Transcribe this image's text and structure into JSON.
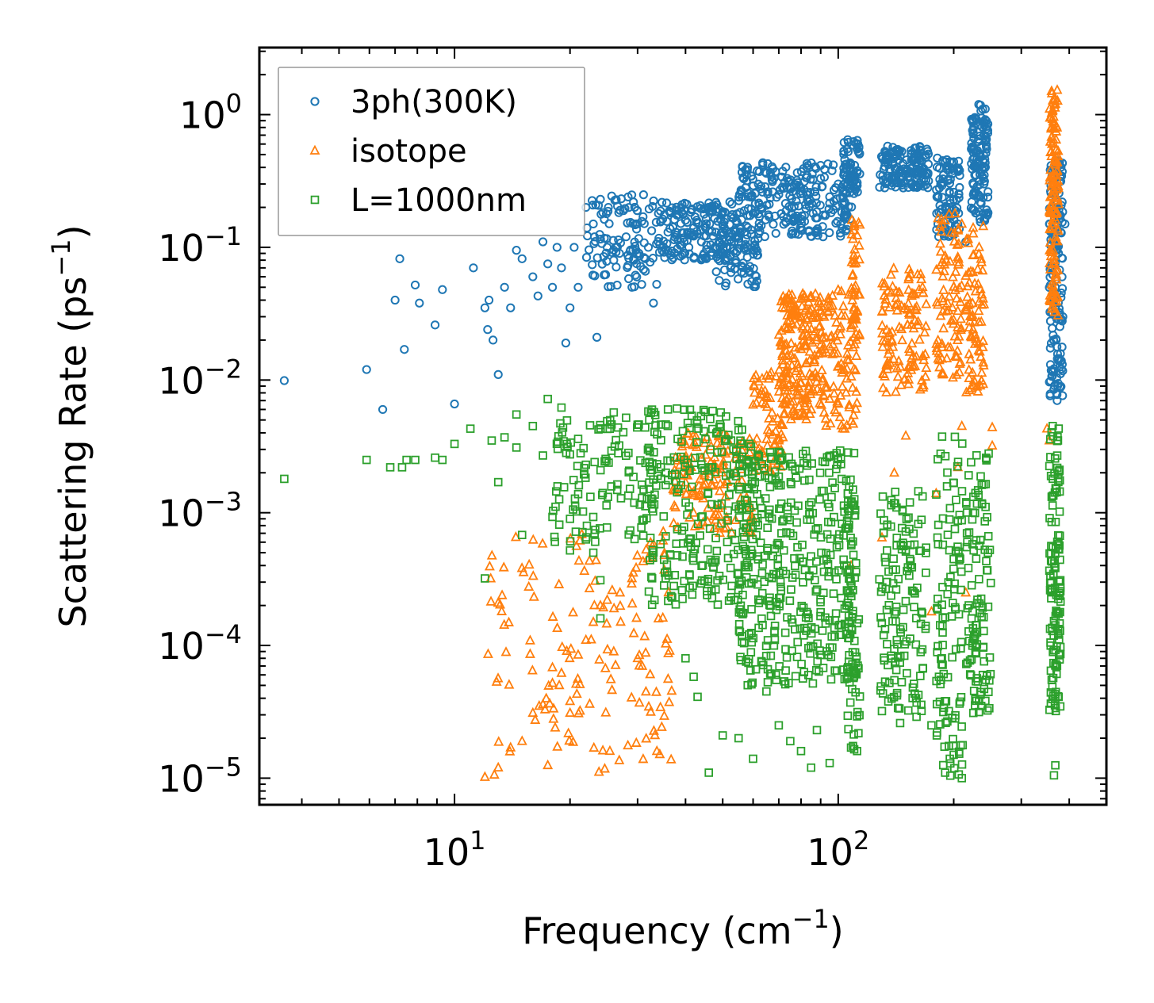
{
  "chart_data": {
    "type": "scatter",
    "x_scale": "log",
    "y_scale": "log",
    "xlabel": "Frequency (cm",
    "ylabel": "Scattering Rate (ps",
    "label_exponent": "−1",
    "label_close": ")",
    "xlim": [
      3.1,
      500
    ],
    "ylim": [
      6.3e-06,
      3.2
    ],
    "x_ticks": [
      {
        "base": "10",
        "exp": "1",
        "value": 10
      },
      {
        "base": "10",
        "exp": "2",
        "value": 100
      }
    ],
    "y_ticks": [
      {
        "base": "10",
        "exp": "0",
        "value": 1
      },
      {
        "base": "10",
        "exp": "−1",
        "value": 0.1
      },
      {
        "base": "10",
        "exp": "−2",
        "value": 0.01
      },
      {
        "base": "10",
        "exp": "−3",
        "value": 0.001
      },
      {
        "base": "10",
        "exp": "−4",
        "value": 0.0001
      },
      {
        "base": "10",
        "exp": "−5",
        "value": 1e-05
      }
    ],
    "legend_position": "top-left",
    "series": [
      {
        "name": "3ph(300K)",
        "color": "#1f77b4",
        "marker": "circle",
        "points": [
          [
            3.6,
            0.0099
          ],
          [
            5.9,
            0.012
          ],
          [
            6.5,
            0.006
          ],
          [
            7.2,
            0.082
          ],
          [
            7.0,
            0.04
          ],
          [
            7.4,
            0.017
          ],
          [
            7.9,
            0.052
          ],
          [
            8.1,
            0.038
          ],
          [
            8.9,
            0.026
          ],
          [
            9.3,
            0.048
          ],
          [
            10.0,
            0.0066
          ],
          [
            11.2,
            0.07
          ],
          [
            12.0,
            0.035
          ],
          [
            12.2,
            0.024
          ],
          [
            12.6,
            0.02
          ],
          [
            13.0,
            0.011
          ],
          [
            12.3,
            0.04
          ],
          [
            13.5,
            0.05
          ],
          [
            14.0,
            0.035
          ],
          [
            14.5,
            0.095
          ],
          [
            15.0,
            0.082
          ],
          [
            16.0,
            0.06
          ],
          [
            16.5,
            0.043
          ],
          [
            17.0,
            0.11
          ],
          [
            17.5,
            0.075
          ],
          [
            18.0,
            0.05
          ],
          [
            18.5,
            0.1
          ],
          [
            19.0,
            0.07
          ],
          [
            19.5,
            0.019
          ],
          [
            20.0,
            0.035
          ],
          [
            20.5,
            0.1
          ],
          [
            21.0,
            0.05
          ],
          [
            22.0,
            0.2
          ],
          [
            23.0,
            0.15
          ],
          [
            23.5,
            0.021
          ],
          [
            24.0,
            0.23
          ],
          [
            25.0,
            0.1
          ],
          [
            26.0,
            0.08
          ],
          [
            27.0,
            0.19
          ],
          [
            28.0,
            0.12
          ],
          [
            29.0,
            0.05
          ],
          [
            30.0,
            0.15
          ],
          [
            31.0,
            0.17
          ],
          [
            32.0,
            0.1
          ],
          [
            33.0,
            0.038
          ],
          [
            34.0,
            0.18
          ],
          [
            36.0,
            0.13
          ],
          [
            38.0,
            0.19
          ],
          [
            40.0,
            0.16
          ],
          [
            42.0,
            0.14
          ],
          [
            44.0,
            0.11
          ],
          [
            46.0,
            0.2
          ],
          [
            48.0,
            0.13
          ],
          [
            50.0,
            0.15
          ],
          [
            52.0,
            0.12
          ],
          [
            54.0,
            0.08
          ],
          [
            56.0,
            0.065
          ],
          [
            58.0,
            0.1
          ],
          [
            60.0,
            0.18
          ],
          [
            63.0,
            0.2
          ],
          [
            66.0,
            0.17
          ],
          [
            70.0,
            0.25
          ],
          [
            72.0,
            0.17
          ],
          [
            75.0,
            0.28
          ],
          [
            78.0,
            0.32
          ],
          [
            80.0,
            0.14
          ],
          [
            83.0,
            0.26
          ],
          [
            86.0,
            0.18
          ],
          [
            90.0,
            0.33
          ],
          [
            95.0,
            0.24
          ],
          [
            100.0,
            0.3
          ],
          [
            104.0,
            0.22
          ],
          [
            108.0,
            0.38
          ],
          [
            112.0,
            0.55
          ],
          [
            135.0,
            0.42
          ],
          [
            145.0,
            0.38
          ],
          [
            155.0,
            0.5
          ],
          [
            165.0,
            0.45
          ],
          [
            185.0,
            0.3
          ],
          [
            195.0,
            0.2
          ],
          [
            205.0,
            0.15
          ],
          [
            215.0,
            0.11
          ],
          [
            225.0,
            0.25
          ],
          [
            232.0,
            0.45
          ],
          [
            238.0,
            1.1
          ],
          [
            240.0,
            0.7
          ],
          [
            360.0,
            0.33
          ],
          [
            365.0,
            0.1
          ],
          [
            368.0,
            0.05
          ],
          [
            370.0,
            0.02
          ],
          [
            372.0,
            0.007
          ],
          [
            375.0,
            0.014
          ],
          [
            380.0,
            0.13
          ],
          [
            385.0,
            0.03
          ],
          [
            390.0,
            0.15
          ]
        ],
        "bands": [
          {
            "x": [
              22,
              34
            ],
            "y": [
              0.05,
              0.25
            ],
            "n": 110
          },
          {
            "x": [
              34,
              55
            ],
            "y": [
              0.08,
              0.22
            ],
            "n": 180
          },
          {
            "x": [
              48,
              62
            ],
            "y": [
              0.05,
              0.12
            ],
            "n": 60
          },
          {
            "x": [
              55,
              110
            ],
            "y": [
              0.12,
              0.45
            ],
            "n": 260
          },
          {
            "x": [
              103,
              114
            ],
            "y": [
              0.25,
              0.65
            ],
            "n": 60
          },
          {
            "x": [
              128,
              172
            ],
            "y": [
              0.28,
              0.58
            ],
            "n": 150
          },
          {
            "x": [
              180,
              208
            ],
            "y": [
              0.12,
              0.48
            ],
            "n": 90
          },
          {
            "x": [
              222,
              246
            ],
            "y": [
              0.15,
              1.2
            ],
            "n": 120
          },
          {
            "x": [
              355,
              385
            ],
            "y": [
              0.0075,
              0.45
            ],
            "n": 160
          }
        ]
      },
      {
        "name": "isotope",
        "color": "#ff7f0e",
        "marker": "triangle",
        "points": [
          [
            12.0,
            1.02e-05
          ],
          [
            12.7,
            1.06e-05
          ],
          [
            13.0,
            1.2e-05
          ],
          [
            14.0,
            1.7e-05
          ],
          [
            15.0,
            1.9e-05
          ],
          [
            16.0,
            3.1e-05
          ],
          [
            17.0,
            3.6e-05
          ],
          [
            18.0,
            5.2e-05
          ],
          [
            19.0,
            6.2e-05
          ],
          [
            20.0,
            3.1e-05
          ],
          [
            21.0,
            8.5e-05
          ],
          [
            22.0,
            0.00011
          ],
          [
            23.0,
            0.00015
          ],
          [
            24.0,
            0.0002
          ],
          [
            25.0,
            0.00022
          ],
          [
            27.0,
            0.00025
          ],
          [
            29.0,
            0.00032
          ],
          [
            31.0,
            0.00043
          ],
          [
            33.0,
            0.00058
          ],
          [
            35.0,
            0.00072
          ],
          [
            17.5,
            1.25e-05
          ],
          [
            20.0,
            3.8e-05
          ],
          [
            26.0,
            9e-05
          ],
          [
            30.0,
            8e-05
          ],
          [
            64.0,
            0.0021
          ],
          [
            70.0,
            0.0035
          ],
          [
            108.0,
            0.0004
          ],
          [
            130.0,
            0.00065
          ],
          [
            140.0,
            0.002
          ],
          [
            150.0,
            0.0038
          ],
          [
            175.0,
            0.00018
          ],
          [
            180.0,
            0.0014
          ],
          [
            205.0,
            0.0022
          ],
          [
            210.0,
            0.0045
          ],
          [
            215.0,
            0.00025
          ],
          [
            252.0,
            0.0044
          ],
          [
            252.0,
            0.0032
          ],
          [
            350.0,
            0.0043
          ],
          [
            355.0,
            0.0035
          ]
        ],
        "bands": [
          {
            "x": [
              12,
              37
            ],
            "y": [
              1.1e-05,
              0.0007
            ],
            "n": 140
          },
          {
            "x": [
              37,
              60
            ],
            "y": [
              0.0007,
              0.004
            ],
            "n": 140
          },
          {
            "x": [
              60,
              72
            ],
            "y": [
              0.002,
              0.012
            ],
            "n": 70
          },
          {
            "x": [
              70,
              92
            ],
            "y": [
              0.005,
              0.045
            ],
            "n": 220
          },
          {
            "x": [
              92,
              112
            ],
            "y": [
              0.004,
              0.05
            ],
            "n": 90
          },
          {
            "x": [
              108,
              114
            ],
            "y": [
              0.02,
              0.17
            ],
            "n": 40
          },
          {
            "x": [
              130,
              170
            ],
            "y": [
              0.008,
              0.07
            ],
            "n": 120
          },
          {
            "x": [
              180,
              210
            ],
            "y": [
              0.01,
              0.18
            ],
            "n": 90
          },
          {
            "x": [
              215,
              240
            ],
            "y": [
              0.008,
              0.15
            ],
            "n": 80
          },
          {
            "x": [
              355,
              375
            ],
            "y": [
              0.03,
              1.6
            ],
            "n": 140
          }
        ]
      },
      {
        "name": "L=1000nm",
        "color": "#2ca02c",
        "marker": "square",
        "points": [
          [
            3.6,
            0.0018
          ],
          [
            5.9,
            0.0025
          ],
          [
            6.8,
            0.0022
          ],
          [
            7.3,
            0.0022
          ],
          [
            7.5,
            0.0025
          ],
          [
            7.9,
            0.0025
          ],
          [
            8.9,
            0.0026
          ],
          [
            9.3,
            0.0025
          ],
          [
            10.0,
            0.0033
          ],
          [
            11.0,
            0.0043
          ],
          [
            12.0,
            0.00032
          ],
          [
            12.5,
            0.0035
          ],
          [
            13.0,
            0.0017
          ],
          [
            13.5,
            0.0037
          ],
          [
            14.5,
            0.0055
          ],
          [
            14.5,
            0.0031
          ],
          [
            15.0,
            0.00068
          ],
          [
            16.0,
            0.0045
          ],
          [
            17.0,
            0.0027
          ],
          [
            17.5,
            0.0072
          ],
          [
            18.0,
            0.00093
          ],
          [
            19.0,
            0.0062
          ],
          [
            20.0,
            0.0009
          ],
          [
            20.0,
            0.00052
          ],
          [
            21.0,
            0.0036
          ],
          [
            22.0,
            0.0023
          ],
          [
            23.0,
            0.0005
          ],
          [
            24.0,
            0.00031
          ],
          [
            24.0,
            0.00016
          ],
          [
            25.0,
            0.0049
          ],
          [
            26.0,
            0.0057
          ],
          [
            28.0,
            0.0052
          ],
          [
            30.0,
            0.0046
          ],
          [
            32.0,
            0.0058
          ],
          [
            36.0,
            0.006
          ],
          [
            38.0,
            0.0061
          ],
          [
            40.0,
            8e-05
          ],
          [
            42.0,
            5.8e-05
          ],
          [
            43.0,
            4.1e-05
          ],
          [
            46.0,
            1.1e-05
          ],
          [
            50.0,
            2.1e-05
          ],
          [
            55.0,
            2e-05
          ],
          [
            60.0,
            1.4e-05
          ],
          [
            65.0,
            4.5e-05
          ],
          [
            70.0,
            2.5e-05
          ],
          [
            75.0,
            1.9e-05
          ],
          [
            80.0,
            1.6e-05
          ],
          [
            85.0,
            1.2e-05
          ],
          [
            88.0,
            2.3e-05
          ],
          [
            95.0,
            1.3e-05
          ],
          [
            108.0,
            1.7e-05
          ],
          [
            112.0,
            1.6e-05
          ],
          [
            130.0,
            3.2e-05
          ],
          [
            145.0,
            2.6e-05
          ],
          [
            160.0,
            2.9e-05
          ],
          [
            175.0,
            2.5e-05
          ],
          [
            190.0,
            1.1e-05
          ],
          [
            200.0,
            1.5e-05
          ],
          [
            210.0,
            1e-05
          ],
          [
            225.0,
            3.1e-05
          ],
          [
            240.0,
            4.7e-05
          ],
          [
            365.0,
            1.05e-05
          ],
          [
            368.0,
            1.25e-05
          ]
        ],
        "bands": [
          {
            "x": [
              18,
              34
            ],
            "y": [
              0.0006,
              0.005
            ],
            "n": 120
          },
          {
            "x": [
              32,
              60
            ],
            "y": [
              0.0002,
              0.006
            ],
            "n": 240
          },
          {
            "x": [
              55,
              112
            ],
            "y": [
              5e-05,
              0.003
            ],
            "n": 420
          },
          {
            "x": [
              105,
              114
            ],
            "y": [
              1.6e-05,
              0.0013
            ],
            "n": 50
          },
          {
            "x": [
              128,
              170
            ],
            "y": [
              3e-05,
              0.0015
            ],
            "n": 140
          },
          {
            "x": [
              180,
              212
            ],
            "y": [
              1e-05,
              0.004
            ],
            "n": 110
          },
          {
            "x": [
              215,
              250
            ],
            "y": [
              3e-05,
              0.003
            ],
            "n": 110
          },
          {
            "x": [
              355,
              380
            ],
            "y": [
              3e-05,
              0.0045
            ],
            "n": 130
          }
        ]
      }
    ]
  }
}
